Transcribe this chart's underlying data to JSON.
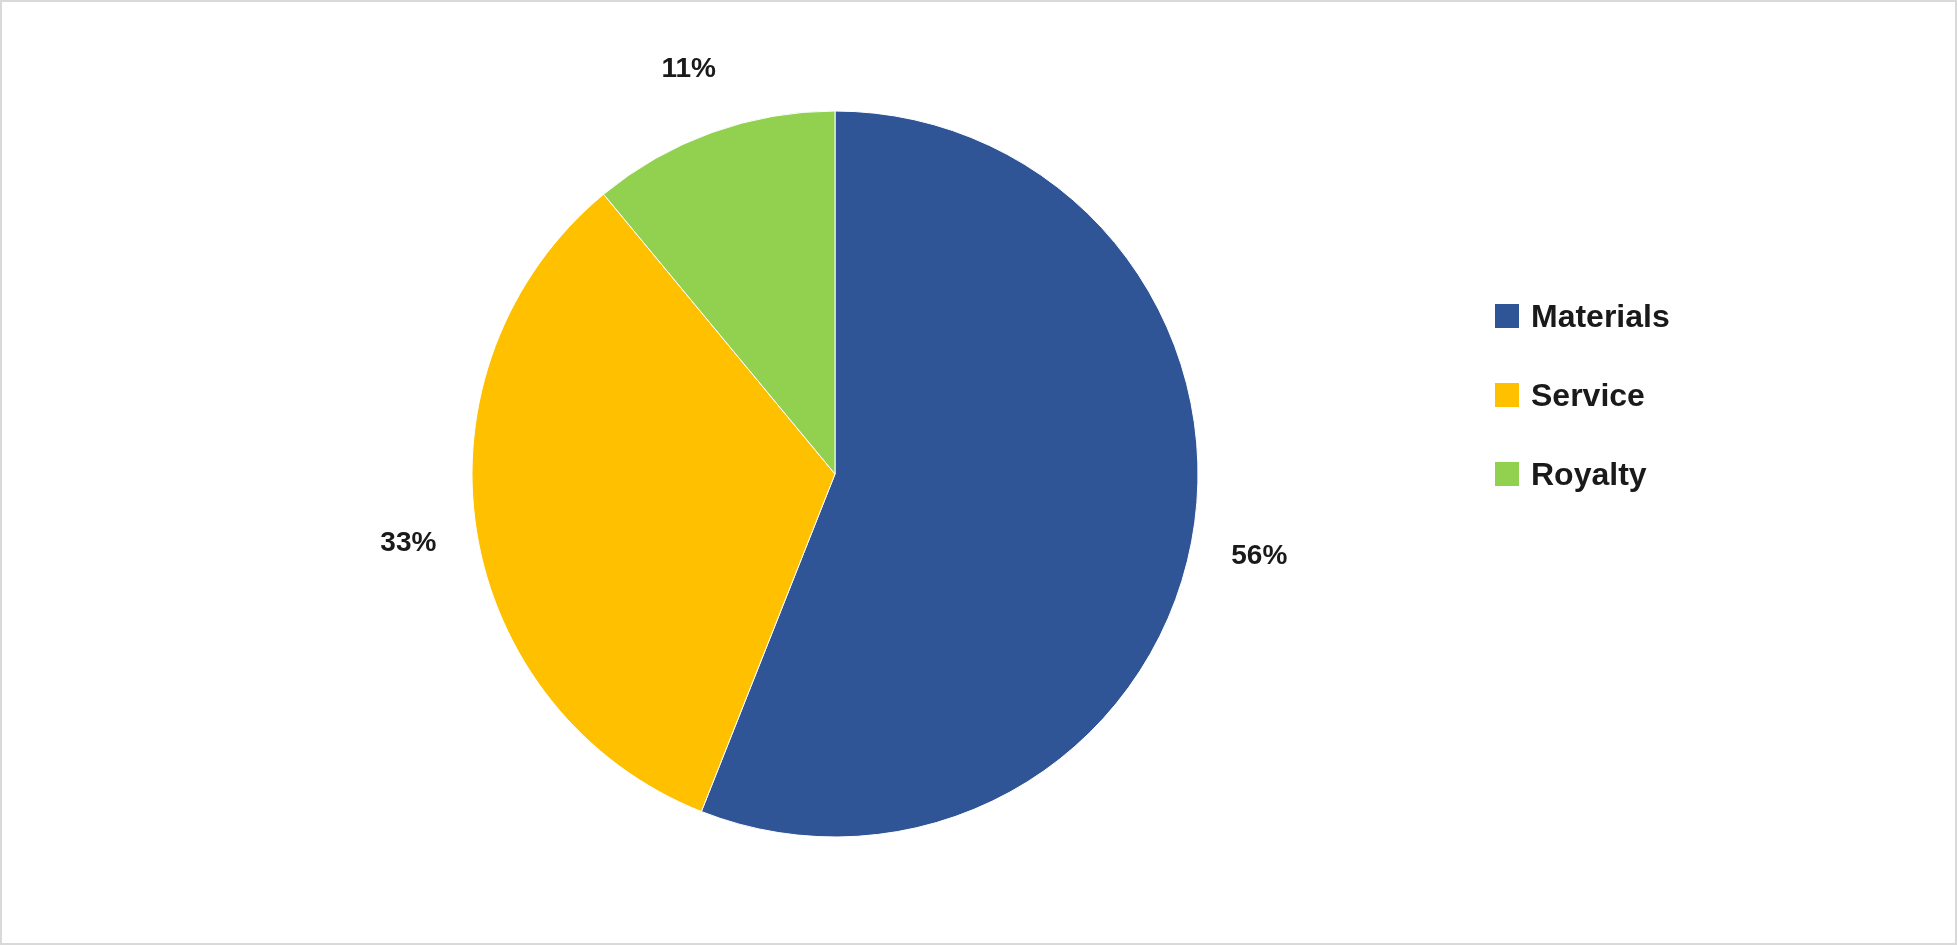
{
  "chart_data": {
    "type": "pie",
    "categories": [
      "Materials",
      "Service",
      "Royalty"
    ],
    "values": [
      56,
      33,
      11
    ],
    "colors": [
      "#2f5597",
      "#ffc000",
      "#92d050"
    ],
    "value_labels": [
      "56%",
      "33%",
      "11%"
    ],
    "legend": "right"
  }
}
